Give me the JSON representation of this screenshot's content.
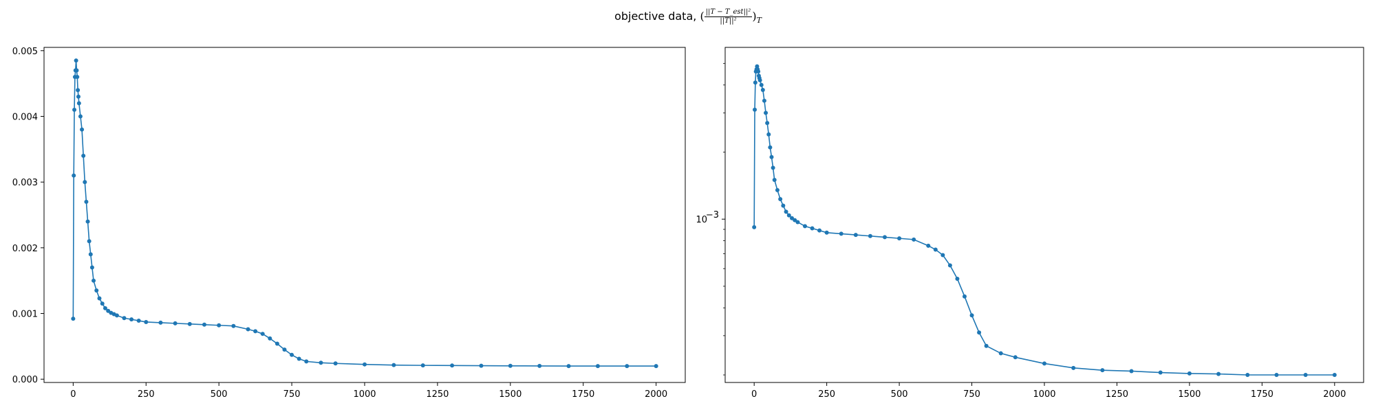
{
  "figure": {
    "title_text": "objective data,",
    "title_math_num": "||T − T_est||²",
    "title_math_den": "||T||²",
    "title_math_open": "(",
    "title_math_close": ")",
    "title_math_sub": "T"
  },
  "colors": {
    "series": "#1f77b4",
    "axes": "#000000"
  },
  "chart_data": [
    {
      "type": "line",
      "marker": "dot",
      "scale": "linear",
      "xlim": [
        -100,
        2100
      ],
      "ylim": [
        -5e-05,
        0.00505
      ],
      "xticks": [
        0,
        250,
        500,
        750,
        1000,
        1250,
        1500,
        1750,
        2000
      ],
      "yticks": [
        0.0,
        0.001,
        0.002,
        0.003,
        0.004,
        0.005
      ],
      "ytick_labels": [
        "0.000",
        "0.001",
        "0.002",
        "0.003",
        "0.004",
        "0.005"
      ],
      "x": [
        0,
        2,
        4,
        6,
        8,
        10,
        12,
        14,
        16,
        18,
        20,
        25,
        30,
        35,
        40,
        45,
        50,
        55,
        60,
        65,
        70,
        80,
        90,
        100,
        110,
        120,
        130,
        140,
        150,
        175,
        200,
        225,
        250,
        300,
        350,
        400,
        450,
        500,
        550,
        600,
        625,
        650,
        675,
        700,
        725,
        750,
        775,
        800,
        850,
        900,
        1000,
        1100,
        1200,
        1300,
        1400,
        1500,
        1600,
        1700,
        1800,
        1900,
        2000
      ],
      "y": [
        0.00092,
        0.0031,
        0.0041,
        0.0046,
        0.0047,
        0.00485,
        0.0047,
        0.0046,
        0.0044,
        0.0043,
        0.0042,
        0.004,
        0.0038,
        0.0034,
        0.003,
        0.0027,
        0.0024,
        0.0021,
        0.0019,
        0.0017,
        0.0015,
        0.00135,
        0.00123,
        0.00115,
        0.00108,
        0.00104,
        0.00101,
        0.00099,
        0.00097,
        0.00093,
        0.00091,
        0.00089,
        0.00087,
        0.00086,
        0.00085,
        0.00084,
        0.00083,
        0.00082,
        0.00081,
        0.00076,
        0.00073,
        0.00069,
        0.00062,
        0.00054,
        0.00045,
        0.00037,
        0.00031,
        0.00027,
        0.00025,
        0.00024,
        0.000225,
        0.000215,
        0.00021,
        0.000208,
        0.000205,
        0.000203,
        0.000202,
        0.0002,
        0.0002,
        0.0002,
        0.0002
      ]
    },
    {
      "type": "line",
      "marker": "dot",
      "scale": "log",
      "xlim": [
        -100,
        2100
      ],
      "ylim": [
        0.000185,
        0.0059
      ],
      "xticks": [
        0,
        250,
        500,
        750,
        1000,
        1250,
        1500,
        1750,
        2000
      ],
      "yticks": [
        0.001
      ],
      "ytick_labels": [
        "10"
      ],
      "ytick_exponents": [
        "−3"
      ],
      "x": [
        0,
        2,
        4,
        6,
        8,
        10,
        12,
        14,
        16,
        18,
        20,
        25,
        30,
        35,
        40,
        45,
        50,
        55,
        60,
        65,
        70,
        80,
        90,
        100,
        110,
        120,
        130,
        140,
        150,
        175,
        200,
        225,
        250,
        300,
        350,
        400,
        450,
        500,
        550,
        600,
        625,
        650,
        675,
        700,
        725,
        750,
        775,
        800,
        850,
        900,
        1000,
        1100,
        1200,
        1300,
        1400,
        1500,
        1600,
        1700,
        1800,
        1900,
        2000
      ],
      "y": [
        0.00092,
        0.0031,
        0.0041,
        0.0046,
        0.0047,
        0.00485,
        0.0047,
        0.0046,
        0.0044,
        0.0043,
        0.0042,
        0.004,
        0.0038,
        0.0034,
        0.003,
        0.0027,
        0.0024,
        0.0021,
        0.0019,
        0.0017,
        0.0015,
        0.00135,
        0.00123,
        0.00115,
        0.00108,
        0.00104,
        0.00101,
        0.00099,
        0.00097,
        0.00093,
        0.00091,
        0.00089,
        0.00087,
        0.00086,
        0.00085,
        0.00084,
        0.00083,
        0.00082,
        0.00081,
        0.00076,
        0.00073,
        0.00069,
        0.00062,
        0.00054,
        0.00045,
        0.00037,
        0.00031,
        0.00027,
        0.00025,
        0.00024,
        0.000225,
        0.000215,
        0.00021,
        0.000208,
        0.000205,
        0.000203,
        0.000202,
        0.0002,
        0.0002,
        0.0002,
        0.0002
      ]
    }
  ]
}
